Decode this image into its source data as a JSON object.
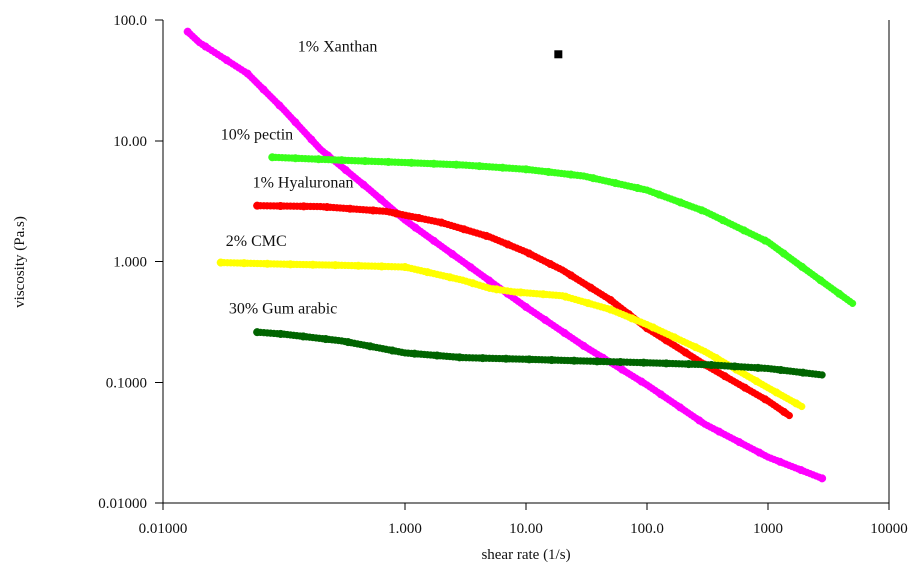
{
  "chart_data": {
    "type": "scatter",
    "title": "",
    "xlabel": "shear rate (1/s)",
    "ylabel": "viscosity (Pa.s)",
    "x_scale": "log",
    "y_scale": "log",
    "xlim": [
      0.01,
      10000
    ],
    "ylim": [
      0.01,
      100
    ],
    "grid": false,
    "legend": "none",
    "x_ticks": [
      {
        "value": 0.01,
        "label": "0.01000"
      },
      {
        "value": 1,
        "label": "1.000"
      },
      {
        "value": 10,
        "label": "10.00"
      },
      {
        "value": 100,
        "label": "100.0"
      },
      {
        "value": 1000,
        "label": "1000"
      },
      {
        "value": 10000,
        "label": "10000"
      }
    ],
    "y_ticks": [
      {
        "value": 100,
        "label": "100.0"
      },
      {
        "value": 10,
        "label": "10.00"
      },
      {
        "value": 1,
        "label": "1.000"
      },
      {
        "value": 0.1,
        "label": "0.1000"
      },
      {
        "value": 0.01,
        "label": "0.01000"
      }
    ],
    "series": [
      {
        "name": "1% Xanthan",
        "color": "#ff00ff",
        "points": [
          [
            0.016,
            80
          ],
          [
            0.02,
            65
          ],
          [
            0.03,
            50
          ],
          [
            0.05,
            36
          ],
          [
            0.1,
            18
          ],
          [
            0.2,
            8.5
          ],
          [
            0.5,
            4
          ],
          [
            1,
            2.2
          ],
          [
            3,
            1
          ],
          [
            10,
            0.42
          ],
          [
            30,
            0.2
          ],
          [
            100,
            0.095
          ],
          [
            300,
            0.045
          ],
          [
            1000,
            0.024
          ],
          [
            2800,
            0.016
          ]
        ]
      },
      {
        "name": "10% pectin",
        "color": "#39ff1a",
        "points": [
          [
            0.08,
            7.3
          ],
          [
            0.3,
            6.9
          ],
          [
            1,
            6.6
          ],
          [
            3,
            6.3
          ],
          [
            10,
            5.8
          ],
          [
            30,
            5.1
          ],
          [
            100,
            3.9
          ],
          [
            300,
            2.6
          ],
          [
            1000,
            1.45
          ],
          [
            3000,
            0.65
          ],
          [
            5000,
            0.45
          ]
        ]
      },
      {
        "name": "1% Hyaluronan",
        "color": "#ff0000",
        "points": [
          [
            0.06,
            2.9
          ],
          [
            0.2,
            2.85
          ],
          [
            0.7,
            2.6
          ],
          [
            2,
            2.1
          ],
          [
            5,
            1.6
          ],
          [
            10,
            1.2
          ],
          [
            20,
            0.85
          ],
          [
            50,
            0.48
          ],
          [
            100,
            0.28
          ],
          [
            300,
            0.14
          ],
          [
            1000,
            0.07
          ],
          [
            1500,
            0.053
          ]
        ]
      },
      {
        "name": "2% CMC",
        "color": "#ffff00",
        "points": [
          [
            0.03,
            0.98
          ],
          [
            0.1,
            0.95
          ],
          [
            0.3,
            0.93
          ],
          [
            1,
            0.9
          ],
          [
            3,
            0.7
          ],
          [
            5,
            0.6
          ],
          [
            8,
            0.56
          ],
          [
            20,
            0.52
          ],
          [
            50,
            0.4
          ],
          [
            100,
            0.3
          ],
          [
            300,
            0.18
          ],
          [
            1000,
            0.09
          ],
          [
            1900,
            0.063
          ]
        ]
      },
      {
        "name": "30% Gum arabic",
        "color": "#006400",
        "points": [
          [
            0.06,
            0.26
          ],
          [
            0.1,
            0.25
          ],
          [
            0.3,
            0.22
          ],
          [
            1,
            0.175
          ],
          [
            3,
            0.16
          ],
          [
            10,
            0.155
          ],
          [
            30,
            0.15
          ],
          [
            100,
            0.145
          ],
          [
            300,
            0.14
          ],
          [
            1000,
            0.13
          ],
          [
            2800,
            0.115
          ]
        ]
      }
    ],
    "series_labels": [
      {
        "text": "1% Xanthan",
        "x": 0.13,
        "y": 55
      },
      {
        "text": "10% pectin",
        "x": 0.03,
        "y": 10.2
      },
      {
        "text": "1% Hyaluronan",
        "x": 0.055,
        "y": 4.1
      },
      {
        "text": "2% CMC",
        "x": 0.033,
        "y": 1.35
      },
      {
        "text": "30% Gum arabic",
        "x": 0.035,
        "y": 0.37
      }
    ],
    "annotations": [
      {
        "type": "square-marker",
        "x": 18.5,
        "y": 52,
        "color": "#000000"
      }
    ]
  }
}
